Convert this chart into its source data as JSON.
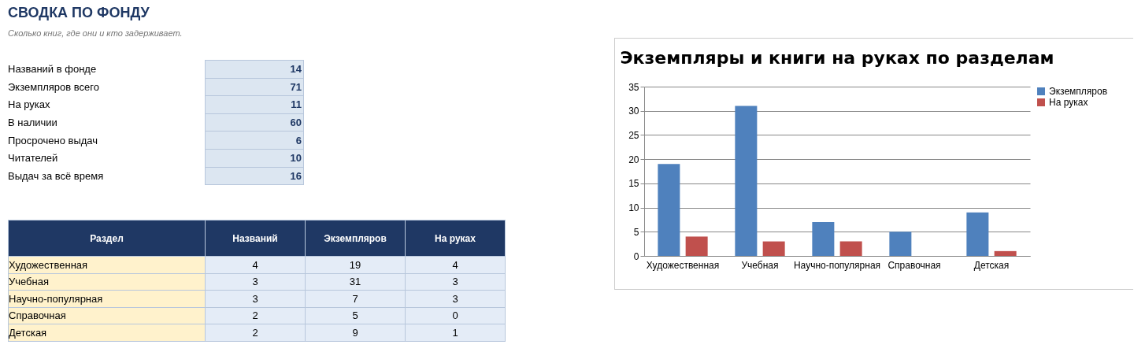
{
  "chart_data": [
    {
      "type": "other",
      "title": "СВОДКА ПО ФОНДУ",
      "subtitle": "Сколько книг, где они и кто задерживает.",
      "categories": [
        "Названий в фонде",
        "Экземпляров всего",
        "На руках",
        "В наличии",
        "Просрочено выдач",
        "Читателей",
        "Выдач за всё время"
      ],
      "values": [
        14,
        71,
        11,
        60,
        6,
        10,
        16
      ],
      "data_labels": true
    },
    {
      "type": "other",
      "xlabel": "Раздел",
      "categories": [
        "Художественная",
        "Учебная",
        "Научно-популярная",
        "Справочная",
        "Детская"
      ],
      "series": [
        {
          "name": "Названий",
          "values": [
            4,
            3,
            3,
            2,
            2
          ]
        },
        {
          "name": "Экземпляров",
          "values": [
            19,
            31,
            7,
            5,
            9
          ]
        },
        {
          "name": "На руках",
          "values": [
            4,
            3,
            3,
            0,
            1
          ]
        }
      ],
      "data_labels": true
    },
    {
      "type": "bar",
      "title": "Экземпляры и книги на руках по разделам",
      "categories": [
        "Художественная",
        "Учебная",
        "Научно-популярная",
        "Справочная",
        "Детская"
      ],
      "series": [
        {
          "name": "Экземпляров",
          "color": "#4f81bd",
          "values": [
            19,
            31,
            7,
            5,
            9
          ]
        },
        {
          "name": "На руках",
          "color": "#c0504d",
          "values": [
            4,
            3,
            3,
            0,
            1
          ]
        }
      ],
      "ylim": [
        0,
        35
      ],
      "yticks": [
        0,
        5,
        10,
        15,
        20,
        25,
        30,
        35
      ],
      "grid": "y",
      "legend": "right"
    }
  ]
}
